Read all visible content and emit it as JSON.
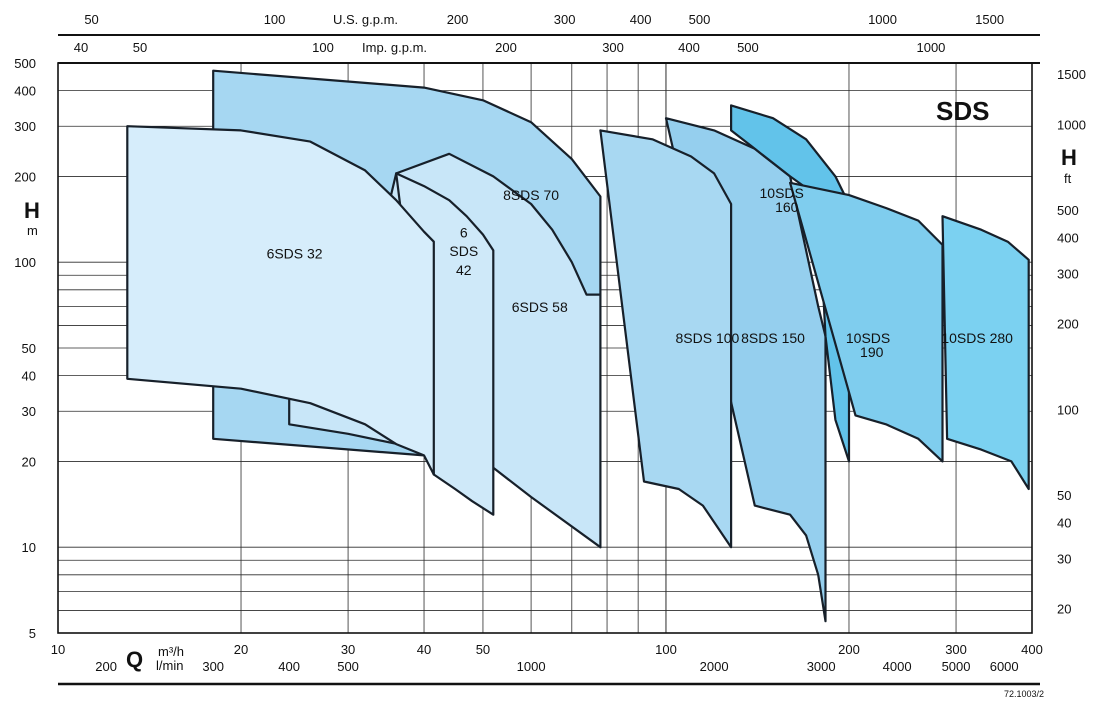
{
  "chart_data": {
    "type": "area",
    "title": "SDS",
    "x_axis": {
      "scale": "log",
      "unit_main": "m³/h",
      "range": [
        10,
        400
      ],
      "ticks_m3h": [
        "10",
        "20",
        "30",
        "40",
        "50",
        "100",
        "200",
        "300",
        "400"
      ],
      "quantity_symbol": "Q",
      "unit_lmin": "l/min",
      "ticks_lmin": [
        "200",
        "300",
        "400",
        "500",
        "1000",
        "2000",
        "3000",
        "4000",
        "5000",
        "6000"
      ],
      "unit_usgpm": "U.S. g.p.m.",
      "ticks_usgpm": [
        "50",
        "100",
        "200",
        "300",
        "400",
        "500",
        "1000",
        "1500"
      ],
      "unit_impgpm": "Imp. g.p.m.",
      "ticks_impgpm": [
        "40",
        "50",
        "100",
        "200",
        "300",
        "400",
        "500",
        "1000"
      ]
    },
    "y_axis": {
      "scale": "log",
      "symbol": "H",
      "unit_left": "m",
      "range": [
        5,
        500
      ],
      "ticks_m": [
        "5",
        "10",
        "20",
        "30",
        "40",
        "50",
        "100",
        "200",
        "300",
        "400",
        "500"
      ],
      "unit_right": "ft",
      "ticks_ft": [
        "20",
        "30",
        "40",
        "50",
        "100",
        "200",
        "300",
        "400",
        "500",
        "1000",
        "1500"
      ]
    },
    "grid": true,
    "footnote": "72.1003/2",
    "series": [
      {
        "name": "8SDS 70",
        "color": "#a6d7f2",
        "label_text": [
          "8SDS 70"
        ],
        "label_at": [
          [
            60,
            165
          ]
        ],
        "upper": [
          [
            18,
            470
          ],
          [
            40,
            410
          ],
          [
            50,
            370
          ],
          [
            60,
            310
          ],
          [
            70,
            230
          ],
          [
            78,
            170
          ]
        ],
        "lower": [
          [
            18,
            24
          ],
          [
            40,
            21
          ],
          [
            50,
            20
          ],
          [
            60,
            18
          ],
          [
            70,
            16
          ],
          [
            78,
            14
          ]
        ],
        "right_top": [
          78,
          170
        ],
        "right_bottom": [
          78,
          10
        ]
      },
      {
        "name": "6SDS 58",
        "color": "#c8e6f8",
        "label_text": [
          "6SDS 58"
        ],
        "label_at": [
          [
            62,
            67
          ]
        ],
        "upper": [
          [
            24,
            35
          ],
          [
            30,
            27
          ],
          [
            40,
            22
          ],
          [
            45,
            21
          ],
          [
            52,
            19
          ],
          [
            60,
            15
          ],
          [
            67,
            12
          ],
          [
            78,
            10
          ]
        ],
        "lower": [
          [
            24,
            27
          ],
          [
            30,
            25
          ],
          [
            40,
            22
          ],
          [
            52,
            19
          ],
          [
            60,
            15
          ],
          [
            78,
            10
          ]
        ],
        "top_curve": [
          [
            44,
            240
          ],
          [
            52,
            200
          ],
          [
            60,
            160
          ],
          [
            65,
            130
          ],
          [
            70,
            100
          ],
          [
            74,
            77
          ]
        ],
        "right_top": [
          78,
          77
        ],
        "right_bottom": [
          78,
          10
        ]
      },
      {
        "name": "6SDS 32",
        "color": "#d6edfb",
        "label_text": [
          "6SDS 32"
        ],
        "label_at": [
          [
            24.5,
            103
          ]
        ],
        "upper": [
          [
            13,
            300
          ],
          [
            20,
            290
          ],
          [
            26,
            265
          ],
          [
            32,
            210
          ],
          [
            36,
            165
          ],
          [
            40,
            128
          ],
          [
            41.5,
            118
          ]
        ],
        "lower": [
          [
            13,
            39
          ],
          [
            20,
            36
          ],
          [
            26,
            32
          ],
          [
            32,
            27
          ],
          [
            36,
            23
          ],
          [
            40,
            21
          ],
          [
            41.5,
            18
          ]
        ],
        "right_top": [
          41.5,
          118
        ],
        "right_bottom": [
          41.5,
          18
        ]
      },
      {
        "name": "6 SDS 42",
        "color": "#cfe9f9",
        "label_text": [
          "6",
          "SDS",
          "42"
        ],
        "label_at": [
          [
            46.5,
            122
          ],
          [
            46.5,
            105
          ],
          [
            46.5,
            90
          ]
        ],
        "upper": [
          [
            36,
            205
          ],
          [
            40,
            185
          ],
          [
            44,
            165
          ],
          [
            47,
            145
          ],
          [
            50,
            125
          ],
          [
            52,
            110
          ]
        ],
        "lower": [
          [
            41.5,
            18
          ],
          [
            45,
            16
          ],
          [
            48,
            14.5
          ],
          [
            52,
            13
          ]
        ],
        "right_top": [
          52,
          110
        ],
        "right_bottom": [
          52,
          13
        ]
      },
      {
        "name": "8SDS 100",
        "color": "#a8d8f2",
        "label_text": [
          "8SDS 100"
        ],
        "label_at": [
          [
            117,
            52
          ]
        ],
        "upper": [
          [
            78,
            290
          ],
          [
            95,
            270
          ],
          [
            110,
            235
          ],
          [
            120,
            205
          ],
          [
            128,
            160
          ]
        ],
        "lower": [
          [
            92,
            17
          ],
          [
            105,
            16
          ],
          [
            115,
            14
          ],
          [
            128,
            10
          ]
        ],
        "right_top": [
          128,
          160
        ],
        "right_bottom": [
          128,
          10
        ]
      },
      {
        "name": "8SDS 150",
        "color": "#95cfee",
        "label_text": [
          "8SDS 150"
        ],
        "label_at": [
          [
            150,
            52
          ]
        ],
        "upper": [
          [
            100,
            320
          ],
          [
            120,
            290
          ],
          [
            140,
            250
          ],
          [
            160,
            200
          ],
          [
            178,
            70
          ],
          [
            183,
            55
          ]
        ],
        "lower": [
          [
            140,
            14
          ],
          [
            160,
            13
          ],
          [
            170,
            11
          ],
          [
            178,
            8
          ],
          [
            183,
            5.5
          ]
        ],
        "right_top": [
          183,
          55
        ],
        "right_bottom": [
          183,
          5.5
        ]
      },
      {
        "name": "10SDS 160",
        "color": "#62c3ea",
        "label_text": [
          "10SDS",
          "160"
        ],
        "label_at": [
          [
            155,
            168
          ],
          [
            158,
            150
          ]
        ],
        "upper": [
          [
            128,
            355
          ],
          [
            150,
            320
          ],
          [
            170,
            270
          ],
          [
            190,
            200
          ],
          [
            200,
            160
          ]
        ],
        "right_top": [
          200,
          160
        ],
        "right_bottom": [
          200,
          20
        ]
      },
      {
        "name": "10SDS 190",
        "color": "#7fcdee",
        "label_text": [
          "10SDS",
          "190"
        ],
        "label_at": [
          [
            215,
            52
          ],
          [
            218,
            46.5
          ]
        ],
        "upper": [
          [
            160,
            190
          ],
          [
            200,
            172
          ],
          [
            230,
            155
          ],
          [
            260,
            140
          ],
          [
            285,
            115
          ]
        ],
        "lower": [
          [
            205,
            29
          ],
          [
            230,
            27
          ],
          [
            260,
            24
          ],
          [
            285,
            20
          ]
        ],
        "right_top": [
          285,
          115
        ],
        "right_bottom": [
          285,
          20
        ]
      },
      {
        "name": "10SDS 280",
        "color": "#7bd1f1",
        "label_text": [
          "10SDS 280"
        ],
        "label_at": [
          [
            325,
            52
          ]
        ],
        "upper": [
          [
            285,
            145
          ],
          [
            330,
            130
          ],
          [
            365,
            118
          ],
          [
            395,
            102
          ]
        ],
        "lower": [
          [
            290,
            24
          ],
          [
            330,
            22
          ],
          [
            370,
            20
          ],
          [
            395,
            16
          ]
        ],
        "right_top": [
          395,
          102
        ],
        "right_bottom": [
          395,
          16
        ]
      }
    ]
  }
}
